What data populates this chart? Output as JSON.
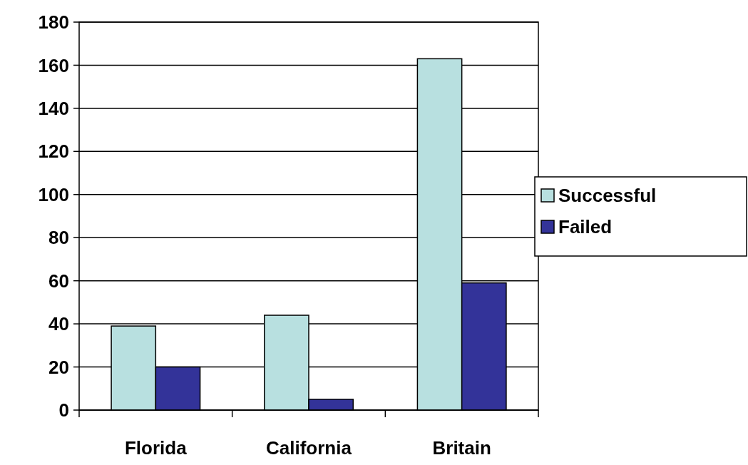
{
  "chart_data": {
    "type": "bar",
    "categories": [
      "Florida",
      "California",
      "Britain"
    ],
    "series": [
      {
        "name": "Successful",
        "color": "#b8e0e0",
        "values": [
          39,
          44,
          163
        ]
      },
      {
        "name": "Failed",
        "color": "#333399",
        "values": [
          20,
          5,
          59
        ]
      }
    ],
    "ylim": [
      0,
      180
    ],
    "yticks": [
      0,
      20,
      40,
      60,
      80,
      100,
      120,
      140,
      160,
      180
    ],
    "grid": "y",
    "legend": "right"
  }
}
